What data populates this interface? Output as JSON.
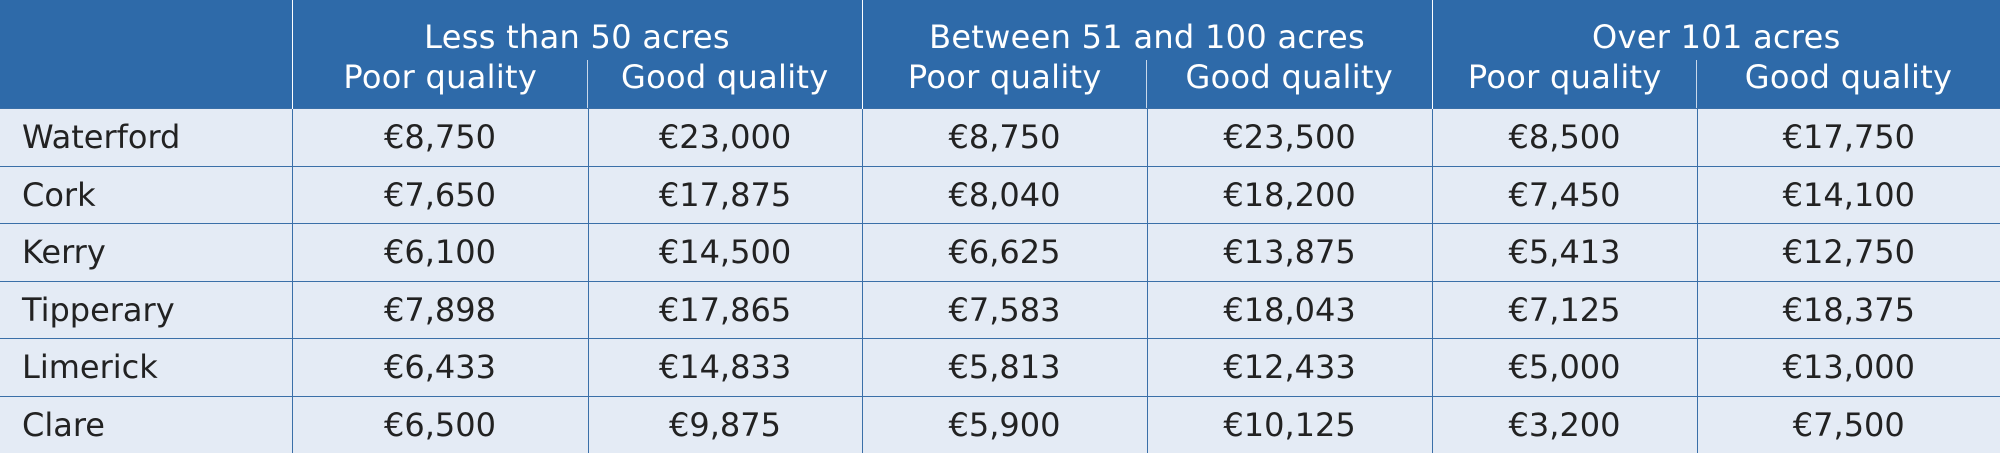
{
  "header": {
    "groups": [
      "Less than 50 acres",
      "Between 51 and 100 acres",
      "Over 101 acres"
    ],
    "subheaders": [
      "Poor quality",
      "Good quality",
      "Poor quality",
      "Good quality",
      "Poor quality",
      "Good quality"
    ]
  },
  "rows": [
    {
      "county": "Waterford",
      "values": [
        "€8,750",
        "€23,000",
        "€8,750",
        "€23,500",
        "€8,500",
        "€17,750"
      ]
    },
    {
      "county": "Cork",
      "values": [
        "€7,650",
        "€17,875",
        "€8,040",
        "€18,200",
        "€7,450",
        "€14,100"
      ]
    },
    {
      "county": "Kerry",
      "values": [
        "€6,100",
        "€14,500",
        "€6,625",
        "€13,875",
        "€5,413",
        "€12,750"
      ]
    },
    {
      "county": "Tipperary",
      "values": [
        "€7,898",
        "€17,865",
        "€7,583",
        "€18,043",
        "€7,125",
        "€18,375"
      ]
    },
    {
      "county": "Limerick",
      "values": [
        "€6,433",
        "€14,833",
        "€5,813",
        "€12,433",
        "€5,000",
        "€13,000"
      ]
    },
    {
      "county": "Clare",
      "values": [
        "€6,500",
        "€9,875",
        "€5,900",
        "€10,125",
        "€3,200",
        "€7,500"
      ]
    }
  ],
  "colors": {
    "header_bg": "#2e6aa9",
    "row_bg": "#e4ebf5",
    "rule": "#3a6fa8"
  }
}
